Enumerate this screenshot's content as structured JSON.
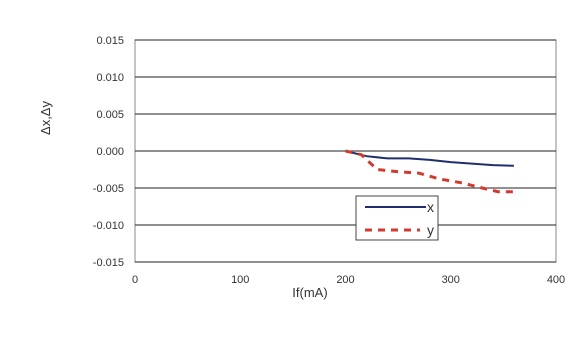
{
  "chart_data": {
    "type": "line",
    "title": "",
    "xlabel": "If(mA)",
    "ylabel": "Δx,Δy",
    "xlim": [
      0,
      400
    ],
    "ylim": [
      -0.015,
      0.015
    ],
    "x_ticks": [
      "0",
      "100",
      "200",
      "300",
      "400"
    ],
    "y_ticks": [
      "0.015",
      "0.010",
      "0.005",
      "0.000",
      "-0.005",
      "-0.010",
      "-0.015"
    ],
    "grid": "horizontal",
    "legend": "center-right",
    "series": [
      {
        "name": "x",
        "color": "#1f2f6b",
        "dash": "solid",
        "x": [
          200,
          220,
          240,
          260,
          280,
          300,
          320,
          340,
          360
        ],
        "y": [
          0.0,
          -0.0007,
          -0.001,
          -0.001,
          -0.0012,
          -0.0015,
          -0.0017,
          -0.0019,
          -0.002
        ]
      },
      {
        "name": "y",
        "color": "#d33a2f",
        "dash": "dashed",
        "x": [
          200,
          215,
          230,
          250,
          270,
          290,
          310,
          330,
          345,
          360
        ],
        "y": [
          0.0,
          -0.0005,
          -0.0025,
          -0.0028,
          -0.003,
          -0.0038,
          -0.0043,
          -0.005,
          -0.0055,
          -0.0055
        ]
      }
    ]
  }
}
